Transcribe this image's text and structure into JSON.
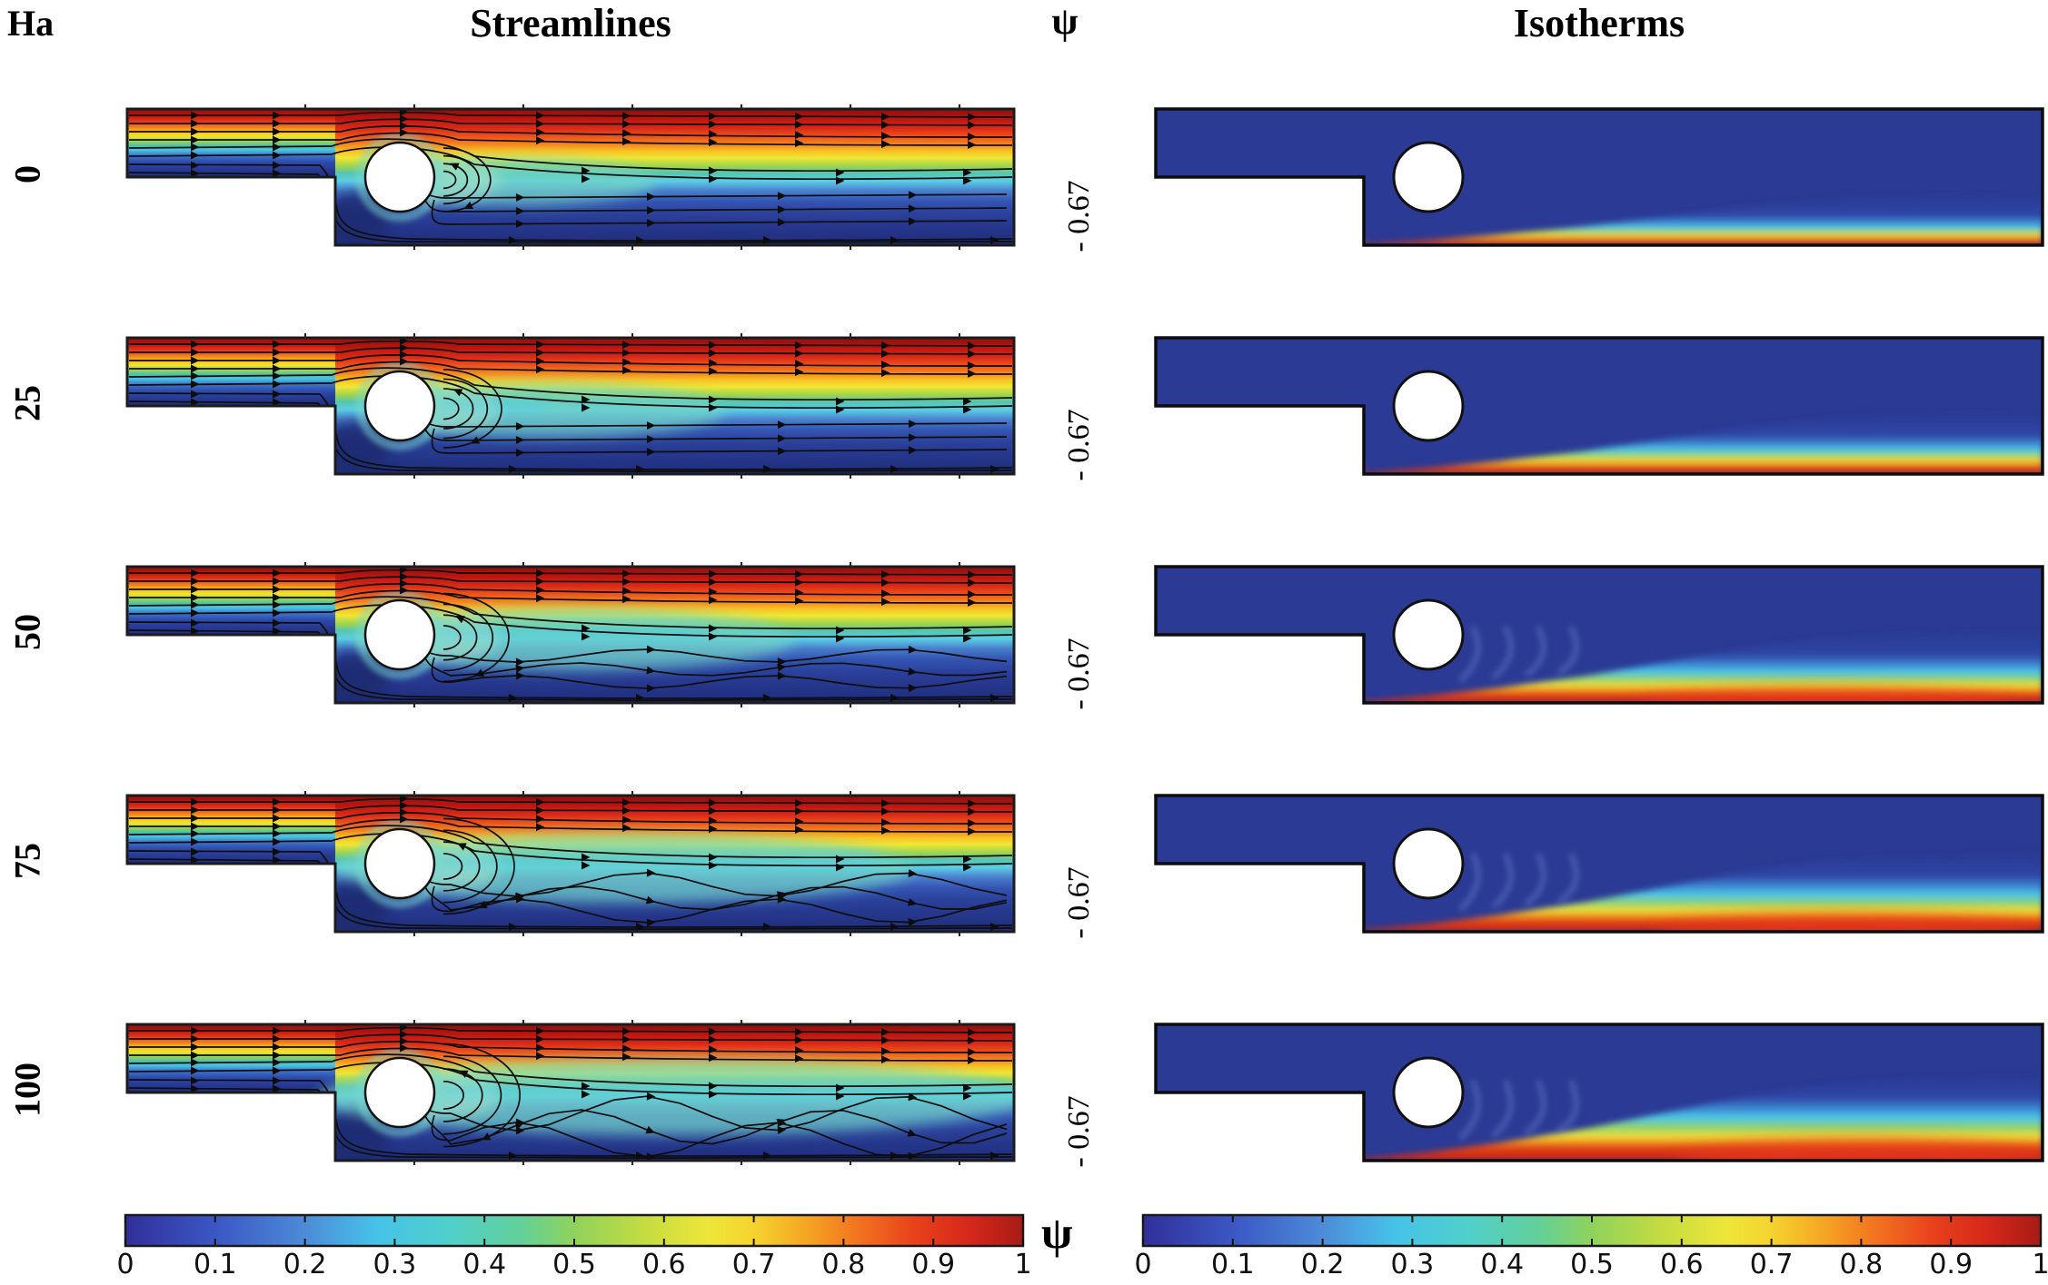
{
  "header": {
    "ha_label": "Ha",
    "streamlines_title": "Streamlines",
    "psi_symbol": "ψ",
    "isotherms_title": "Isotherms"
  },
  "rows": [
    {
      "ha": "0",
      "psi_min": "- 0.67"
    },
    {
      "ha": "25",
      "psi_min": "- 0.67"
    },
    {
      "ha": "50",
      "psi_min": "- 0.67"
    },
    {
      "ha": "75",
      "psi_min": "- 0.67"
    },
    {
      "ha": "100",
      "psi_min": "- 0.67"
    }
  ],
  "colorbar": {
    "psi_symbol": "ψ",
    "min": 0,
    "max": 1,
    "ticks": [
      "0",
      "0.1",
      "0.2",
      "0.3",
      "0.4",
      "0.5",
      "0.6",
      "0.7",
      "0.8",
      "0.9",
      "1"
    ]
  },
  "colors": {
    "navy_domain": "#2b3a94",
    "hot_red": "#c41d12",
    "accent_cyan": "#4cc8e8",
    "line_black": "#0d0d0d"
  },
  "chart_data": {
    "type": "heatmap",
    "title": "Streamlines and Isotherms for varying Hartmann number",
    "grid": "5 rows x 2 columns of contour plots",
    "row_variable": "Ha",
    "row_values": [
      0,
      25,
      50,
      75,
      100
    ],
    "columns": [
      "Streamlines",
      "Isotherms"
    ],
    "stream_function_label": "ψ",
    "stream_function_min_per_row": [
      -0.67,
      -0.67,
      -0.67,
      -0.67,
      -0.67
    ],
    "colorbar": {
      "label": "ψ",
      "range": [
        0,
        1
      ],
      "ticks": [
        0,
        0.1,
        0.2,
        0.3,
        0.4,
        0.5,
        0.6,
        0.7,
        0.8,
        0.9,
        1
      ],
      "colormap": "rainbow-jet (dark blue to dark red)"
    },
    "geometry": "backward-facing step channel with a circular cylinder just downstream of the step",
    "legend_position": "two horizontal colorbars at bottom"
  }
}
